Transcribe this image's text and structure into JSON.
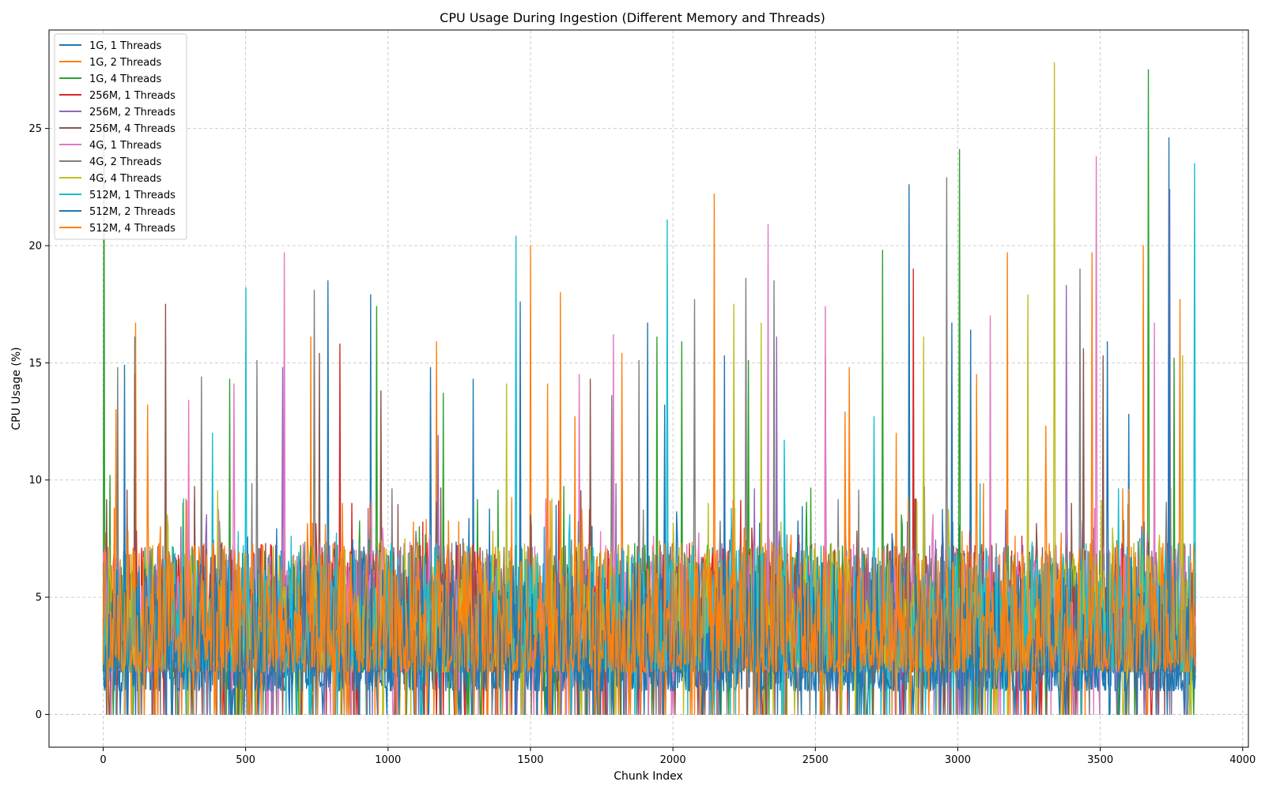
{
  "chart_data": {
    "type": "line",
    "title": "CPU Usage During Ingestion (Different Memory and Threads)",
    "xlabel": "Chunk Index",
    "ylabel": "CPU Usage (%)",
    "xlim": [
      -190,
      4020
    ],
    "ylim": [
      -1.4,
      29.2
    ],
    "xticks": [
      0,
      500,
      1000,
      1500,
      2000,
      2500,
      3000,
      3500,
      4000
    ],
    "yticks": [
      0,
      5,
      10,
      15,
      20,
      25
    ],
    "grid": true,
    "legend_position": "top-left",
    "x_range_of_data": [
      0,
      3834
    ],
    "series": [
      {
        "name": "1G, 1 Threads",
        "color": "#1f77b4",
        "peaks": [
          [
            5,
            5.3
          ],
          [
            110,
            16.1
          ],
          [
            790,
            18.5
          ],
          [
            940,
            17.9
          ],
          [
            1150,
            14.8
          ],
          [
            1300,
            14.3
          ],
          [
            1910,
            16.7
          ],
          [
            2830,
            22.6
          ],
          [
            3045,
            16.4
          ],
          [
            3600,
            12.8
          ]
        ]
      },
      {
        "name": "1G, 2 Threads",
        "color": "#ff7f0e",
        "peaks": [
          [
            45,
            13.0
          ],
          [
            115,
            16.7
          ],
          [
            155,
            13.2
          ],
          [
            730,
            16.1
          ],
          [
            1170,
            15.9
          ],
          [
            1500,
            20.0
          ],
          [
            1605,
            18.0
          ],
          [
            1820,
            15.4
          ],
          [
            2145,
            22.2
          ],
          [
            2620,
            14.8
          ],
          [
            2785,
            12.0
          ],
          [
            3175,
            19.7
          ],
          [
            3650,
            20.0
          ],
          [
            3780,
            17.7
          ]
        ]
      },
      {
        "name": "1G, 4 Threads",
        "color": "#2ca02c",
        "peaks": [
          [
            2,
            26.0
          ],
          [
            25,
            10.2
          ],
          [
            445,
            14.3
          ],
          [
            960,
            17.4
          ],
          [
            1195,
            13.7
          ],
          [
            1945,
            16.1
          ],
          [
            2030,
            15.9
          ],
          [
            2265,
            15.1
          ],
          [
            2735,
            19.8
          ],
          [
            3005,
            24.1
          ],
          [
            3670,
            27.5
          ],
          [
            3760,
            15.2
          ]
        ]
      },
      {
        "name": "256M, 1 Threads",
        "color": "#d62728",
        "peaks": [
          [
            830,
            15.8
          ],
          [
            2845,
            19.0
          ]
        ]
      },
      {
        "name": "256M, 2 Threads",
        "color": "#9467bd",
        "peaks": [
          [
            630,
            14.8
          ],
          [
            1175,
            11.9
          ],
          [
            2365,
            16.1
          ],
          [
            2535,
            15.2
          ],
          [
            3380,
            18.3
          ],
          [
            3745,
            22.4
          ]
        ]
      },
      {
        "name": "256M, 4 Threads",
        "color": "#8c564b",
        "peaks": [
          [
            110,
            14.5
          ],
          [
            220,
            17.5
          ],
          [
            760,
            15.4
          ],
          [
            975,
            13.8
          ],
          [
            1710,
            14.3
          ],
          [
            3440,
            15.6
          ],
          [
            3510,
            15.3
          ]
        ]
      },
      {
        "name": "4G, 1 Threads",
        "color": "#e377c2",
        "peaks": [
          [
            300,
            13.4
          ],
          [
            460,
            14.1
          ],
          [
            635,
            19.7
          ],
          [
            1670,
            14.5
          ],
          [
            1790,
            16.2
          ],
          [
            2335,
            20.9
          ],
          [
            2535,
            17.4
          ],
          [
            3115,
            17.0
          ],
          [
            3485,
            23.8
          ],
          [
            3690,
            16.7
          ]
        ]
      },
      {
        "name": "4G, 2 Threads",
        "color": "#7f7f7f",
        "peaks": [
          [
            50,
            14.8
          ],
          [
            345,
            14.4
          ],
          [
            540,
            15.1
          ],
          [
            740,
            18.1
          ],
          [
            1785,
            13.6
          ],
          [
            1880,
            15.1
          ],
          [
            2075,
            17.7
          ],
          [
            2255,
            18.6
          ],
          [
            2355,
            18.5
          ],
          [
            2960,
            22.9
          ],
          [
            3430,
            19.0
          ]
        ]
      },
      {
        "name": "4G, 4 Threads",
        "color": "#bcbd22",
        "peaks": [
          [
            1415,
            14.1
          ],
          [
            2215,
            17.5
          ],
          [
            2310,
            16.7
          ],
          [
            2880,
            16.1
          ],
          [
            3245,
            17.9
          ],
          [
            3340,
            27.8
          ],
          [
            3790,
            15.3
          ]
        ]
      },
      {
        "name": "512M, 1 Threads",
        "color": "#17becf",
        "peaks": [
          [
            385,
            12.0
          ],
          [
            500,
            18.2
          ],
          [
            1450,
            20.4
          ],
          [
            1980,
            21.1
          ],
          [
            2390,
            11.7
          ],
          [
            2705,
            12.7
          ],
          [
            3830,
            23.5
          ]
        ]
      },
      {
        "name": "512M, 2 Threads",
        "color": "#1f77b4",
        "peaks": [
          [
            75,
            14.9
          ],
          [
            1465,
            17.6
          ],
          [
            1970,
            13.2
          ],
          [
            2180,
            15.3
          ],
          [
            2980,
            16.7
          ],
          [
            3525,
            15.9
          ],
          [
            3740,
            24.6
          ]
        ]
      },
      {
        "name": "512M, 4 Threads",
        "color": "#ff7f0e",
        "peaks": [
          [
            40,
            8.8
          ],
          [
            1560,
            14.1
          ],
          [
            1655,
            12.7
          ],
          [
            2605,
            12.9
          ],
          [
            3065,
            14.5
          ],
          [
            3310,
            12.3
          ],
          [
            3470,
            19.7
          ],
          [
            3600,
            9.6
          ]
        ]
      }
    ]
  }
}
